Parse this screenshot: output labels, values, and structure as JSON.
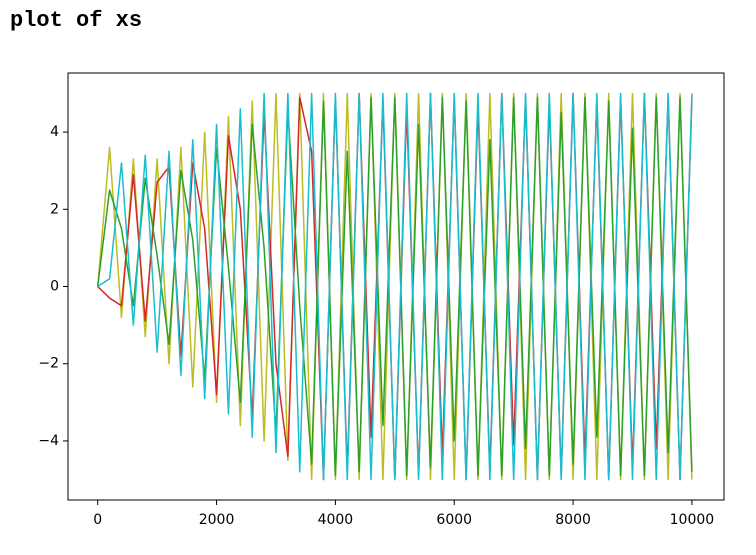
{
  "cell_title": "plot of xs",
  "chart_data": {
    "type": "line",
    "x": [
      0,
      200,
      400,
      600,
      800,
      1000,
      1200,
      1400,
      1600,
      1800,
      2000,
      2200,
      2400,
      2600,
      2800,
      3000,
      3200,
      3400,
      3600,
      3800,
      4000,
      4200,
      4400,
      4600,
      4800,
      5000,
      5200,
      5400,
      5600,
      5800,
      6000,
      6200,
      6400,
      6600,
      6800,
      7000,
      7200,
      7400,
      7600,
      7800,
      8000,
      8200,
      8400,
      8600,
      8800,
      9000,
      9200,
      9400,
      9600,
      9800,
      10000
    ],
    "series": [
      {
        "color": "#bcbd22",
        "values": [
          0,
          3.6,
          -0.8,
          3.3,
          -1.3,
          3.3,
          -2.0,
          3.6,
          -2.6,
          4.0,
          -3.0,
          4.4,
          -3.6,
          4.8,
          -4.0,
          5,
          -4.5,
          5,
          -5,
          5,
          -5,
          5,
          -5,
          5,
          -5,
          5,
          -5,
          5,
          -5,
          5,
          -5,
          5,
          -5,
          5,
          -5,
          5,
          -5,
          5,
          -5,
          5,
          -5,
          5,
          -5,
          5,
          -5,
          5,
          -5,
          5,
          -5,
          5,
          -5
        ]
      },
      {
        "color": "#d62728",
        "values": [
          0,
          -0.3,
          -0.5,
          2.9,
          -0.9,
          2.7,
          3.1,
          -1.8,
          3.2,
          1.5,
          -2.8,
          3.9,
          2.0,
          -3.4,
          4.5,
          -2.0,
          -4.4,
          4.9,
          3.5,
          -5,
          4.9,
          -4.8,
          5,
          -3.9,
          4.8,
          -5,
          4.6,
          -4.9,
          5,
          -4.4,
          4.9,
          -5,
          4.7,
          -4.8,
          5,
          -4.1,
          4.9,
          -5,
          4.8,
          -4.9,
          5,
          -4.5,
          4.8,
          -5,
          4.9,
          -4.7,
          5,
          -4.2,
          4.9,
          -5,
          4.9
        ]
      },
      {
        "color": "#2ca02c",
        "values": [
          0,
          2.5,
          1.5,
          -0.5,
          2.8,
          0.8,
          -1.5,
          3.0,
          1.2,
          -2.4,
          3.6,
          0.5,
          -3.0,
          4.2,
          1.0,
          -3.8,
          4.6,
          -0.5,
          -4.6,
          4.8,
          -4.9,
          3.5,
          -4.8,
          4.9,
          -3.6,
          4.9,
          -4.9,
          4.2,
          -4.7,
          4.9,
          -4.0,
          4.8,
          -4.9,
          3.8,
          -4.9,
          4.9,
          -4.2,
          4.9,
          -4.9,
          4.5,
          -4.6,
          4.9,
          -3.9,
          4.8,
          -4.9,
          4.1,
          -4.9,
          4.9,
          -4.3,
          4.9,
          -4.8
        ]
      },
      {
        "color": "#17becf",
        "values": [
          0,
          0.2,
          3.2,
          -1.0,
          3.4,
          -1.7,
          3.5,
          -2.3,
          3.8,
          -2.9,
          4.2,
          -3.3,
          4.6,
          -3.9,
          5,
          -4.3,
          5,
          -4.8,
          5,
          -5,
          5,
          -5,
          5,
          -5,
          5,
          -5,
          5,
          -5,
          5,
          -5,
          5,
          -5,
          5,
          -5,
          5,
          -5,
          5,
          -5,
          5,
          -5,
          5,
          -5,
          5,
          -5,
          5,
          -5,
          5,
          -5,
          5,
          -5,
          5
        ]
      }
    ],
    "xlim": [
      -500,
      10540
    ],
    "ylim": [
      -5.53,
      5.53
    ],
    "xticks": [
      0,
      2000,
      4000,
      6000,
      8000,
      10000
    ],
    "yticks": [
      {
        "value": -4,
        "label": "−4"
      },
      {
        "value": -2,
        "label": "−2"
      },
      0,
      2,
      4
    ],
    "grid": false
  }
}
